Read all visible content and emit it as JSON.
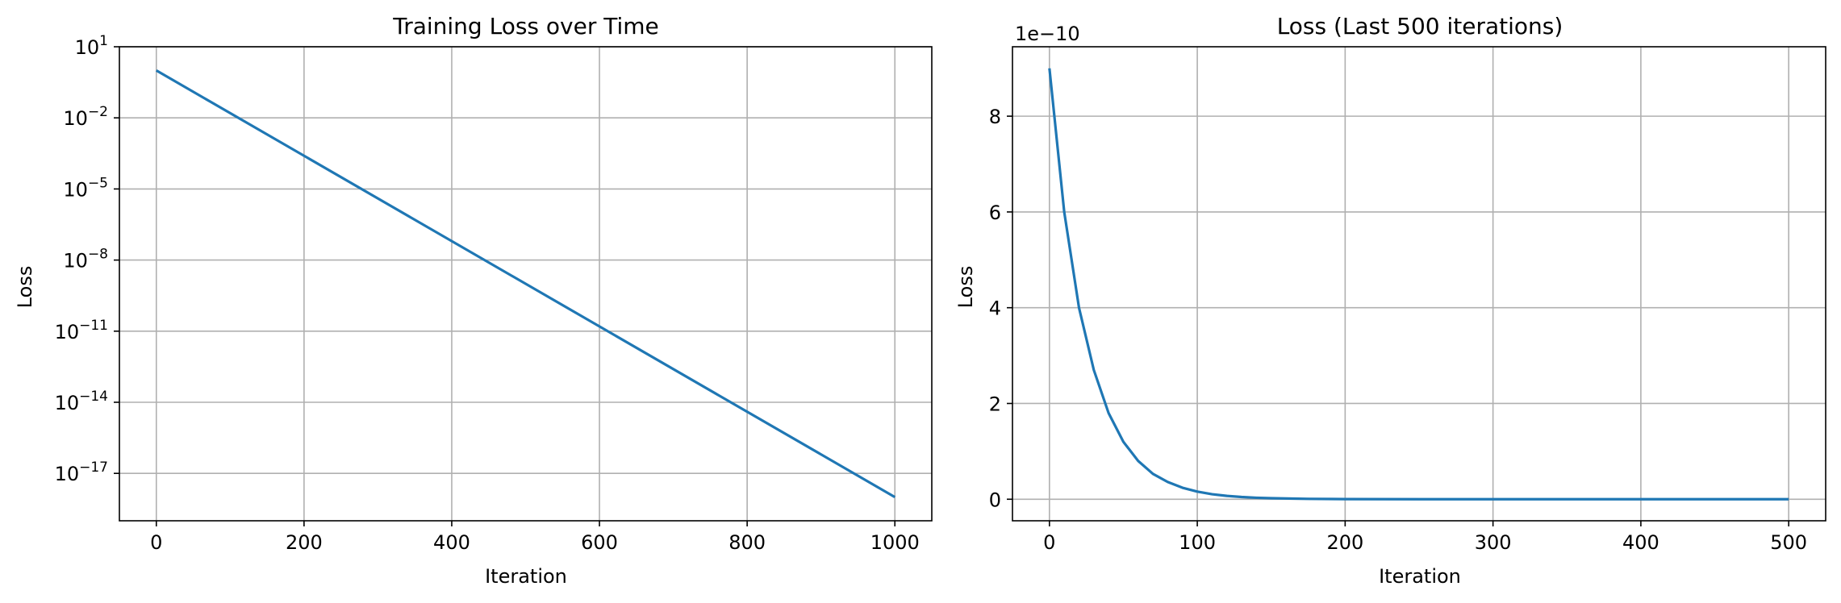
{
  "colors": {
    "series": "#1f77b4"
  },
  "chart_data": [
    {
      "type": "line",
      "title": "Training Loss over Time",
      "xlabel": "Iteration",
      "ylabel": "Loss",
      "yscale": "log",
      "grid": true,
      "xlim": [
        -50,
        1050
      ],
      "ylim": [
        1e-19,
        10
      ],
      "xticks": [
        0,
        200,
        400,
        600,
        800,
        1000
      ],
      "xtick_labels": [
        "0",
        "200",
        "400",
        "600",
        "800",
        "1000"
      ],
      "yticks": [
        {
          "value": 10,
          "base": "10",
          "exp": "1"
        },
        {
          "value": 0.01,
          "base": "10",
          "exp": "−2"
        },
        {
          "value": 1e-05,
          "base": "10",
          "exp": "−5"
        },
        {
          "value": 1e-08,
          "base": "10",
          "exp": "−8"
        },
        {
          "value": 1e-11,
          "base": "10",
          "exp": "−11"
        },
        {
          "value": 1e-14,
          "base": "10",
          "exp": "−14"
        },
        {
          "value": 1e-17,
          "base": "10",
          "exp": "−17"
        }
      ],
      "series": [
        {
          "x": [
            0,
            1000
          ],
          "y": [
            1.0,
            1e-18
          ]
        }
      ]
    },
    {
      "type": "line",
      "title": "Loss (Last 500 iterations)",
      "xlabel": "Iteration",
      "ylabel": "Loss",
      "offset_text": "1e−10",
      "grid": true,
      "xlim": [
        -25,
        525
      ],
      "ylim": [
        -0.45,
        9.45
      ],
      "xticks": [
        0,
        100,
        200,
        300,
        400,
        500
      ],
      "xtick_labels": [
        "0",
        "100",
        "200",
        "300",
        "400",
        "500"
      ],
      "yticks": [
        0,
        2,
        4,
        6,
        8
      ],
      "ytick_labels": [
        "0",
        "2",
        "4",
        "6",
        "8"
      ],
      "series": [
        {
          "x": [
            0,
            10,
            20,
            30,
            40,
            50,
            60,
            70,
            80,
            90,
            100,
            110,
            120,
            130,
            140,
            150,
            175,
            200,
            250,
            300,
            350,
            400,
            450,
            500
          ],
          "y": [
            9.0,
            6.0,
            4.0,
            2.7,
            1.8,
            1.2,
            0.8,
            0.53,
            0.36,
            0.24,
            0.16,
            0.105,
            0.07,
            0.047,
            0.031,
            0.021,
            0.008,
            0.003,
            0.0004,
            0.0,
            0.0,
            0.0,
            0.0,
            0.0
          ]
        }
      ]
    }
  ]
}
